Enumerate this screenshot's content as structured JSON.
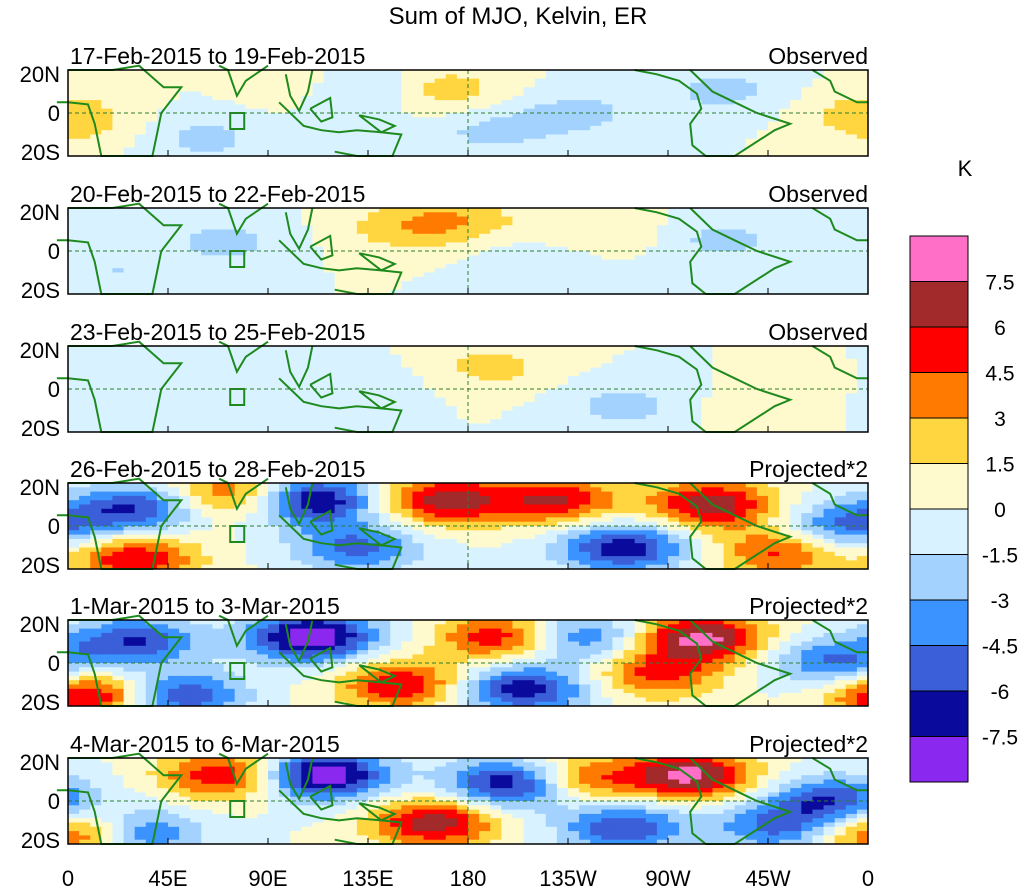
{
  "chart_data": {
    "type": "heatmap",
    "title": "Sum of MJO, Kelvin, ER",
    "units": "K",
    "y_ticks": [
      "20N",
      "0",
      "20S"
    ],
    "x_ticks": [
      "0",
      "45E",
      "90E",
      "135E",
      "180",
      "135W",
      "90W",
      "45W",
      "0"
    ],
    "x_range_deg": [
      0,
      360
    ],
    "y_range_deg": [
      -20,
      20
    ],
    "colorbar": {
      "levels": [
        "7.5",
        "6",
        "4.5",
        "3",
        "1.5",
        "0",
        "-1.5",
        "-3",
        "-4.5",
        "-6",
        "-7.5"
      ],
      "colors": [
        "#ff6ec7",
        "#a32a2a",
        "#ff0000",
        "#ff7a00",
        "#ffd540",
        "#fffacd",
        "#d8f3ff",
        "#a3d2ff",
        "#3a93ff",
        "#3a5fd8",
        "#0a0a9c",
        "#8a28f0"
      ]
    },
    "panels": [
      {
        "dates": "17-Feb-2015 to 19-Feb-2015",
        "label": "Observed",
        "blobs": [
          [
            128,
            10,
            -3
          ],
          [
            170,
            10,
            2.5
          ],
          [
            112,
            12,
            2
          ],
          [
            190,
            -8,
            -2
          ],
          [
            295,
            10,
            -2
          ],
          [
            358,
            0,
            2
          ],
          [
            230,
            0,
            -2
          ],
          [
            60,
            -12,
            -2
          ],
          [
            10,
            -8,
            1
          ]
        ]
      },
      {
        "dates": "20-Feb-2015 to 22-Feb-2015",
        "label": "Observed",
        "blobs": [
          [
            70,
            4,
            -2
          ],
          [
            175,
            15,
            2.5
          ],
          [
            150,
            10,
            2
          ],
          [
            240,
            10,
            1.5
          ],
          [
            295,
            5,
            -2
          ],
          [
            210,
            -8,
            -1.5
          ],
          [
            20,
            -10,
            -1.5
          ]
        ]
      },
      {
        "dates": "23-Feb-2015 to 25-Feb-2015",
        "label": "Observed",
        "blobs": [
          [
            65,
            8,
            -1.5
          ],
          [
            190,
            10,
            2
          ],
          [
            250,
            -8,
            -2
          ],
          [
            130,
            0,
            -1.5
          ],
          [
            320,
            -10,
            1.5
          ],
          [
            15,
            -12,
            -1
          ]
        ]
      },
      {
        "dates": "26-Feb-2015 to 28-Feb-2015",
        "label": "Projected*2",
        "blobs": [
          [
            110,
            12,
            -8
          ],
          [
            30,
            8,
            -6
          ],
          [
            170,
            12,
            7
          ],
          [
            290,
            10,
            7
          ],
          [
            220,
            12,
            6
          ],
          [
            250,
            -10,
            -7
          ],
          [
            350,
            0,
            -5
          ],
          [
            30,
            -15,
            6
          ],
          [
            130,
            -10,
            -5
          ],
          [
            75,
            15,
            5
          ],
          [
            320,
            -12,
            5
          ]
        ]
      },
      {
        "dates": "1-Mar-2015 to 3-Mar-2015",
        "label": "Projected*2",
        "blobs": [
          [
            110,
            12,
            -9
          ],
          [
            30,
            10,
            -6
          ],
          [
            195,
            12,
            6
          ],
          [
            285,
            12,
            8
          ],
          [
            230,
            12,
            -5
          ],
          [
            205,
            -12,
            -7
          ],
          [
            150,
            -10,
            6
          ],
          [
            345,
            0,
            -5
          ],
          [
            10,
            -15,
            7
          ],
          [
            50,
            -15,
            -6
          ],
          [
            265,
            -5,
            5
          ]
        ]
      },
      {
        "dates": "4-Mar-2015 to 6-Mar-2015",
        "label": "Projected*2",
        "blobs": [
          [
            115,
            12,
            -9
          ],
          [
            200,
            8,
            -8
          ],
          [
            280,
            12,
            8
          ],
          [
            165,
            -10,
            7
          ],
          [
            70,
            12,
            6
          ],
          [
            30,
            -15,
            -6
          ],
          [
            345,
            0,
            -6
          ],
          [
            5,
            -15,
            7
          ],
          [
            250,
            -12,
            -6
          ],
          [
            230,
            10,
            5
          ],
          [
            320,
            -12,
            -5
          ]
        ]
      }
    ]
  }
}
